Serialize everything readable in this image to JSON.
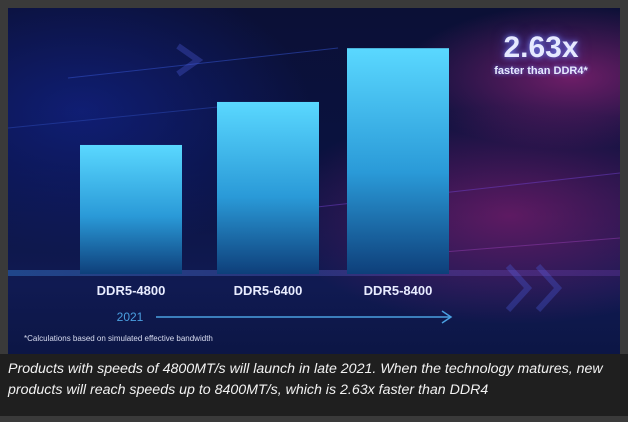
{
  "chart_data": {
    "type": "bar",
    "categories": [
      "DDR5-4800",
      "DDR5-6400",
      "DDR5-8400"
    ],
    "values": [
      4800,
      6400,
      8400
    ],
    "title": "",
    "xlabel": "",
    "ylabel": "",
    "ylim": [
      0,
      9300
    ],
    "grid": false,
    "axis_annotation": "2021",
    "callout": {
      "value": "2.63x",
      "text": "faster than DDR4*"
    },
    "footnote": "*Calculations based on simulated effective bandwidth"
  },
  "caption": "Products with speeds of 4800MT/s will launch in late 2021. When the technology matures, new products will reach speeds up to 8400MT/s, which is 2.63x faster than DDR4",
  "colors": {
    "bar_top": "#5ad8ff",
    "bar_bottom": "#0e3f7a",
    "label": "#e8ecff",
    "year_line": "#4a9fe0"
  }
}
